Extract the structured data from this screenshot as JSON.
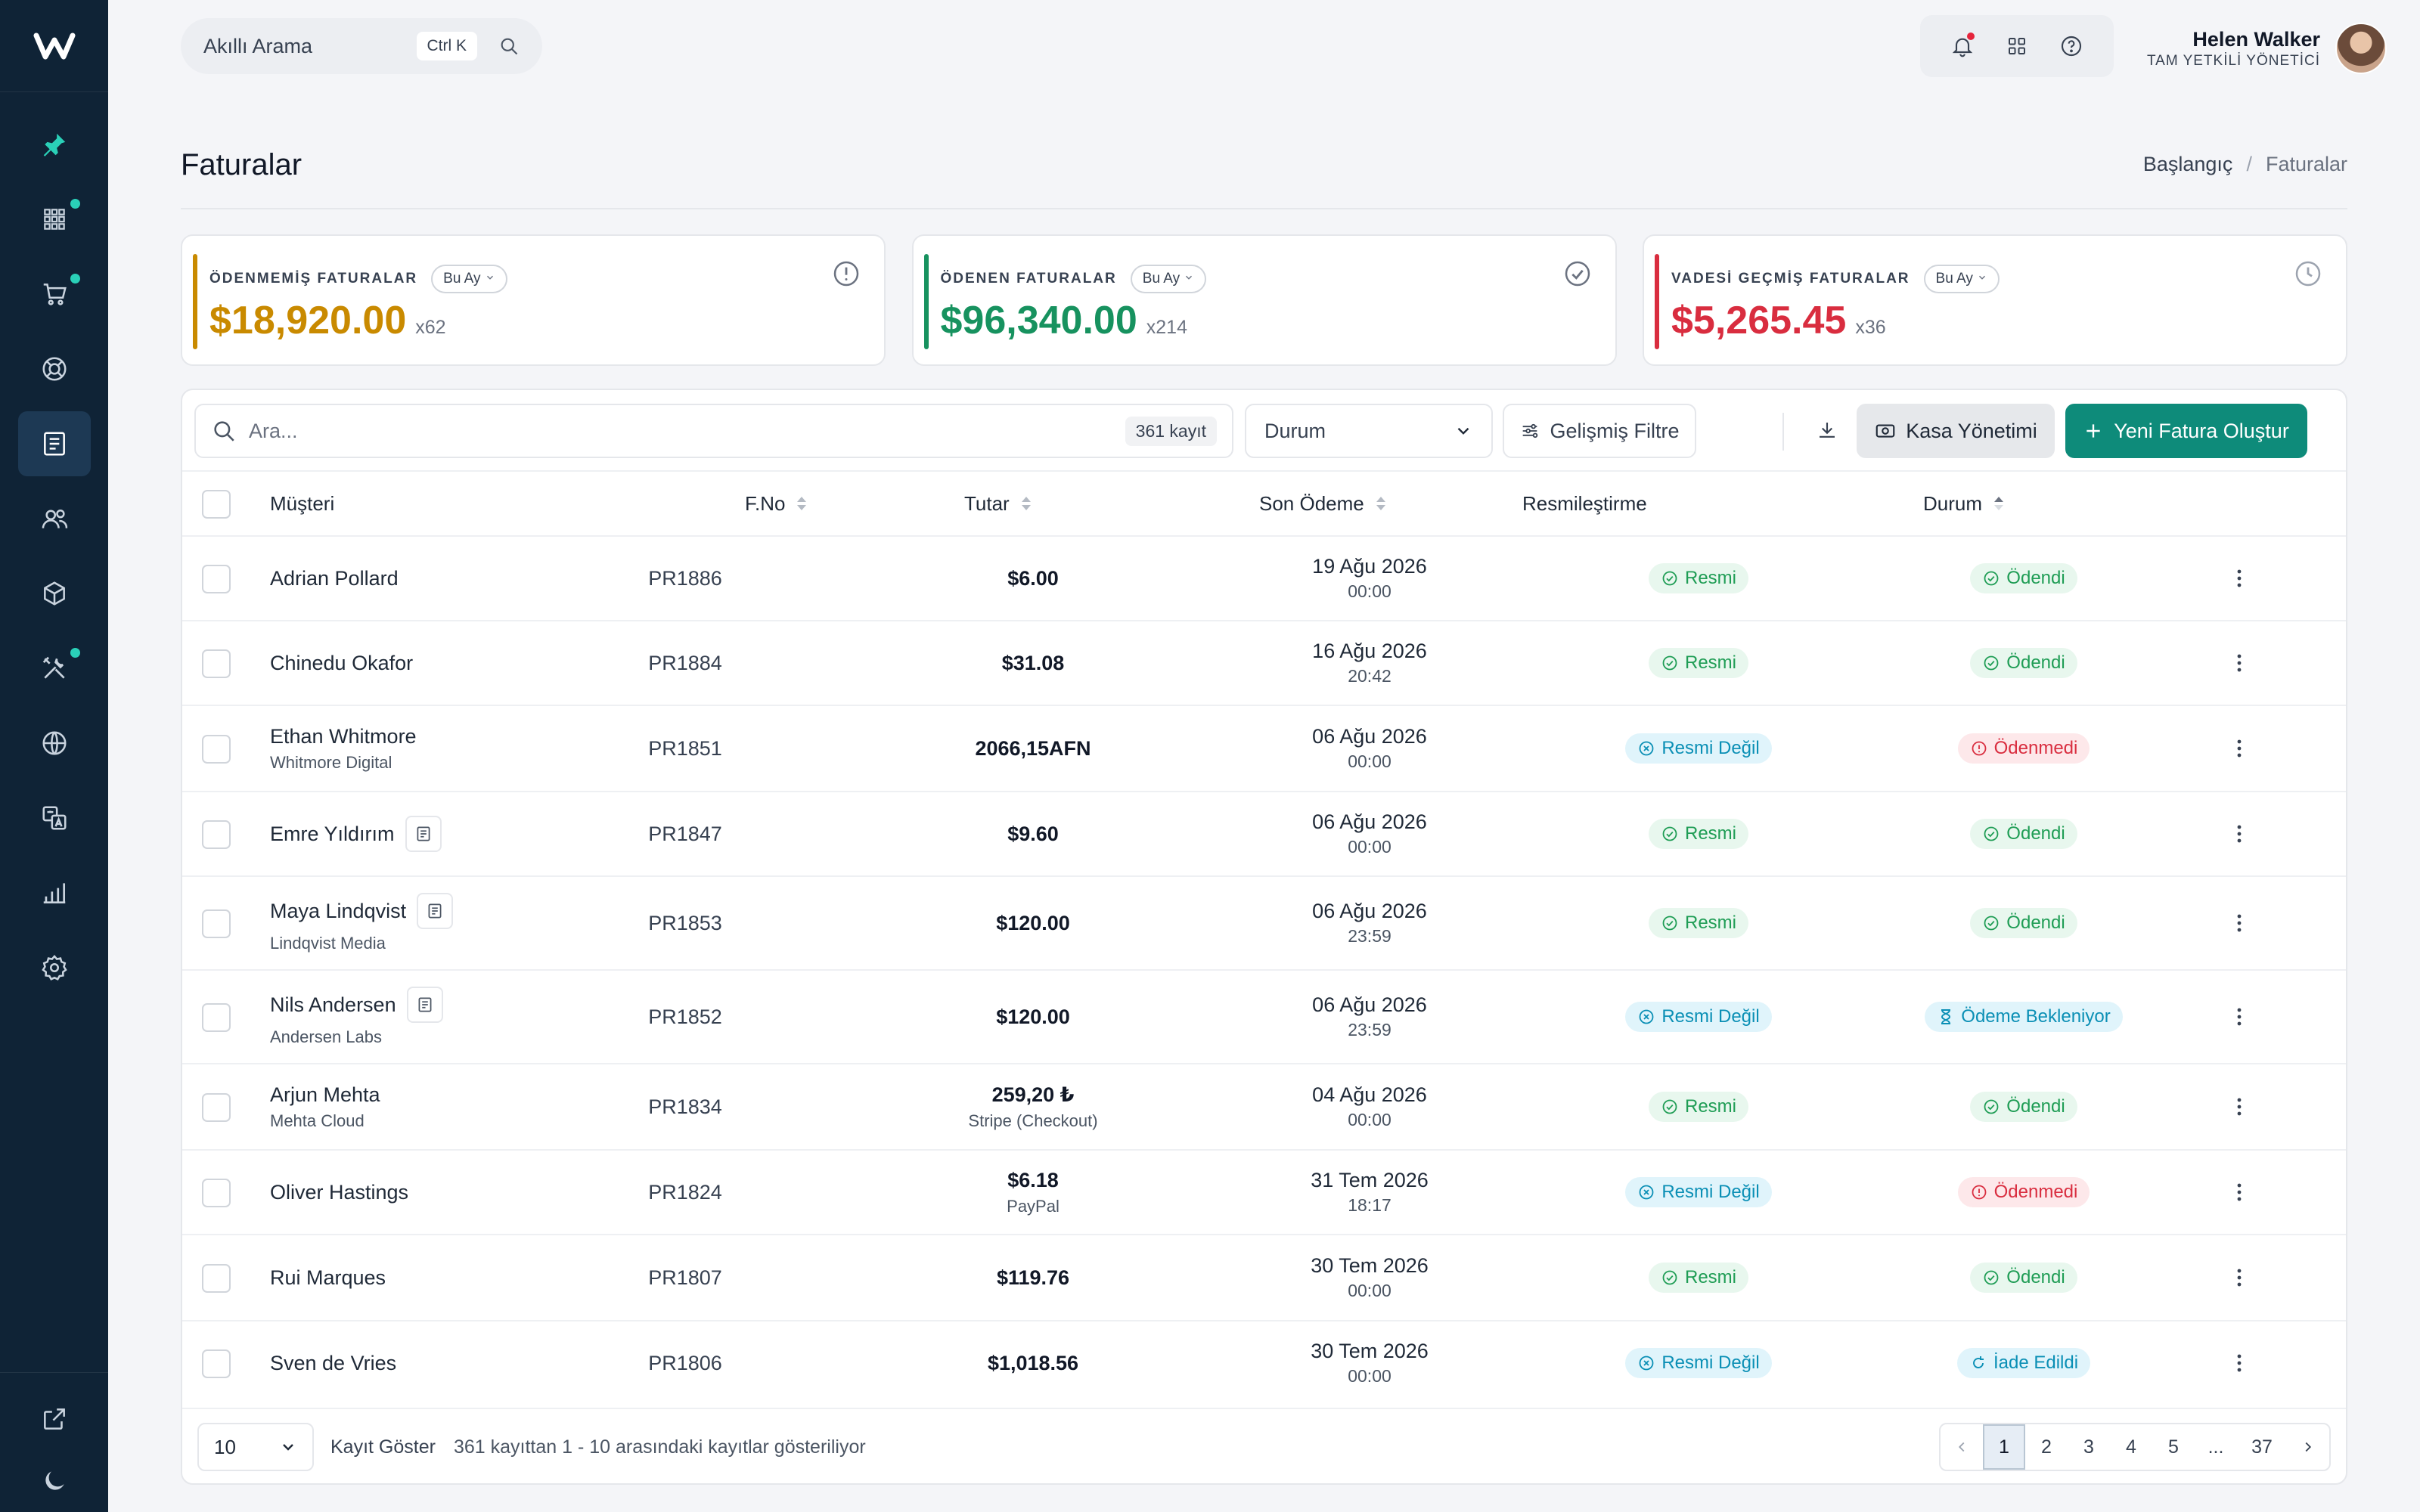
{
  "app": {
    "title": "Faturalar"
  },
  "sidebar": {
    "logo": "W",
    "items": [
      {
        "name": "pin",
        "icon": "pin-icon",
        "badge": false,
        "active": false
      },
      {
        "name": "apps",
        "icon": "grid-icon",
        "badge": true,
        "active": false
      },
      {
        "name": "cart",
        "icon": "cart-icon",
        "badge": true,
        "active": false
      },
      {
        "name": "support",
        "icon": "lifebuoy-icon",
        "badge": false,
        "active": false
      },
      {
        "name": "invoices",
        "icon": "invoice-icon",
        "badge": false,
        "active": true
      },
      {
        "name": "users",
        "icon": "users-icon",
        "badge": false,
        "active": false
      },
      {
        "name": "products",
        "icon": "box-icon",
        "badge": false,
        "active": false
      },
      {
        "name": "tools",
        "icon": "tools-icon",
        "badge": true,
        "active": false
      },
      {
        "name": "domains",
        "icon": "globe-icon",
        "badge": false,
        "active": false
      },
      {
        "name": "translate",
        "icon": "translate-icon",
        "badge": false,
        "active": false
      },
      {
        "name": "reports",
        "icon": "chart-icon",
        "badge": false,
        "active": false
      },
      {
        "name": "settings",
        "icon": "gear-icon",
        "badge": false,
        "active": false
      }
    ],
    "bottom": [
      {
        "icon": "external-link-icon"
      },
      {
        "icon": "moon-icon"
      }
    ]
  },
  "topbar": {
    "search_placeholder": "Akıllı Arama",
    "shortcut": "Ctrl K",
    "user_name": "Helen Walker",
    "user_role": "TAM YETKİLİ YÖNETİCİ"
  },
  "breadcrumb": {
    "home": "Başlangıç",
    "current": "Faturalar"
  },
  "stats": [
    {
      "label": "ÖDENMEMİŞ FATURALAR",
      "period": "Bu Ay",
      "value": "$18,920.00",
      "count": "x62",
      "color": "#c98a00",
      "icon": "alert-circle-icon"
    },
    {
      "label": "ÖDENEN FATURALAR",
      "period": "Bu Ay",
      "value": "$96,340.00",
      "count": "x214",
      "color": "#17925f",
      "icon": "check-circle-icon"
    },
    {
      "label": "VADESİ GEÇMİŞ FATURALAR",
      "period": "Bu Ay",
      "value": "$5,265.45",
      "count": "x36",
      "color": "#d92d3f",
      "icon": "clock-icon"
    }
  ],
  "toolbar": {
    "search_placeholder": "Ara...",
    "record_count": "361 kayıt",
    "status_select": "Durum",
    "advanced_filter": "Gelişmiş Filtre",
    "cash_button": "Kasa Yönetimi",
    "new_button": "Yeni Fatura Oluştur"
  },
  "table": {
    "headers": {
      "customer": "Müşteri",
      "fno": "F.No",
      "amount": "Tutar",
      "last_payment": "Son Ödeme",
      "official": "Resmileştirme",
      "status": "Durum"
    },
    "rows": [
      {
        "name": "Adrian Pollard",
        "company": "",
        "doc": false,
        "fno": "PR1886",
        "amount": "$6.00",
        "method": "",
        "date": "19 Ağu 2026",
        "time": "00:00",
        "official": "Resmi",
        "official_type": "green",
        "status": "Ödendi",
        "status_type": "green",
        "status_icon": "check"
      },
      {
        "name": "Chinedu Okafor",
        "company": "",
        "doc": false,
        "fno": "PR1884",
        "amount": "$31.08",
        "method": "",
        "date": "16 Ağu 2026",
        "time": "20:42",
        "official": "Resmi",
        "official_type": "green",
        "status": "Ödendi",
        "status_type": "green",
        "status_icon": "check"
      },
      {
        "name": "Ethan Whitmore",
        "company": "Whitmore Digital",
        "doc": false,
        "fno": "PR1851",
        "amount": "2066,15AFN",
        "method": "",
        "date": "06 Ağu 2026",
        "time": "00:00",
        "official": "Resmi Değil",
        "official_type": "blue",
        "status": "Ödenmedi",
        "status_type": "red",
        "status_icon": "alert"
      },
      {
        "name": "Emre Yıldırım",
        "company": "",
        "doc": true,
        "fno": "PR1847",
        "amount": "$9.60",
        "method": "",
        "date": "06 Ağu 2026",
        "time": "00:00",
        "official": "Resmi",
        "official_type": "green",
        "status": "Ödendi",
        "status_type": "green",
        "status_icon": "check"
      },
      {
        "name": "Maya Lindqvist",
        "company": "Lindqvist Media",
        "doc": true,
        "fno": "PR1853",
        "amount": "$120.00",
        "method": "",
        "date": "06 Ağu 2026",
        "time": "23:59",
        "official": "Resmi",
        "official_type": "green",
        "status": "Ödendi",
        "status_type": "green",
        "status_icon": "check"
      },
      {
        "name": "Nils Andersen",
        "company": "Andersen Labs",
        "doc": true,
        "fno": "PR1852",
        "amount": "$120.00",
        "method": "",
        "date": "06 Ağu 2026",
        "time": "23:59",
        "official": "Resmi Değil",
        "official_type": "blue",
        "status": "Ödeme Bekleniyor",
        "status_type": "blue",
        "status_icon": "hourglass"
      },
      {
        "name": "Arjun Mehta",
        "company": "Mehta Cloud",
        "doc": false,
        "fno": "PR1834",
        "amount": "259,20 ₺",
        "method": "Stripe (Checkout)",
        "date": "04 Ağu 2026",
        "time": "00:00",
        "official": "Resmi",
        "official_type": "green",
        "status": "Ödendi",
        "status_type": "green",
        "status_icon": "check"
      },
      {
        "name": "Oliver Hastings",
        "company": "",
        "doc": false,
        "fno": "PR1824",
        "amount": "$6.18",
        "method": "PayPal",
        "date": "31 Tem 2026",
        "time": "18:17",
        "official": "Resmi Değil",
        "official_type": "blue",
        "status": "Ödenmedi",
        "status_type": "red",
        "status_icon": "alert"
      },
      {
        "name": "Rui Marques",
        "company": "",
        "doc": false,
        "fno": "PR1807",
        "amount": "$119.76",
        "method": "",
        "date": "30 Tem 2026",
        "time": "00:00",
        "official": "Resmi",
        "official_type": "green",
        "status": "Ödendi",
        "status_type": "green",
        "status_icon": "check"
      },
      {
        "name": "Sven de Vries",
        "company": "",
        "doc": false,
        "fno": "PR1806",
        "amount": "$1,018.56",
        "method": "",
        "date": "30 Tem 2026",
        "time": "00:00",
        "official": "Resmi Değil",
        "official_type": "blue",
        "status": "İade Edildi",
        "status_type": "blue",
        "status_icon": "refresh"
      }
    ]
  },
  "footer": {
    "page_size": "10",
    "show_label": "Kayıt Göster",
    "info": "361 kayıttan 1 - 10 arasındaki kayıtlar gösteriliyor",
    "pages": [
      "1",
      "2",
      "3",
      "4",
      "5",
      "...",
      "37"
    ],
    "current_page": "1"
  }
}
